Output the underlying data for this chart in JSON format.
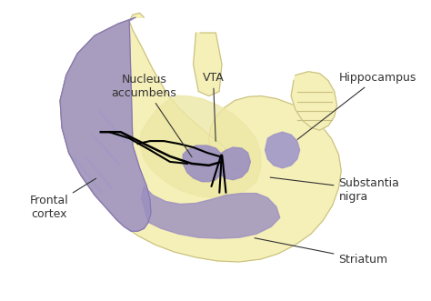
{
  "bg_color": "#ffffff",
  "brain_outer_color": "#f5efb8",
  "brain_inner_color": "#ede9a8",
  "purple_color": "#9b8fc0",
  "purple_light": "#b8aed4",
  "line_color": "#333333",
  "text_color": "#333333",
  "labels": {
    "frontal_cortex": "Frontal\ncortex",
    "striatum": "Striatum",
    "substantia_nigra": "Substantia\nnigra",
    "nucleus_accumbens": "Nucleus\naccumbens",
    "vta": "VTA",
    "hippocampus": "Hippocampus"
  },
  "figsize": [
    4.74,
    3.31
  ],
  "dpi": 100
}
